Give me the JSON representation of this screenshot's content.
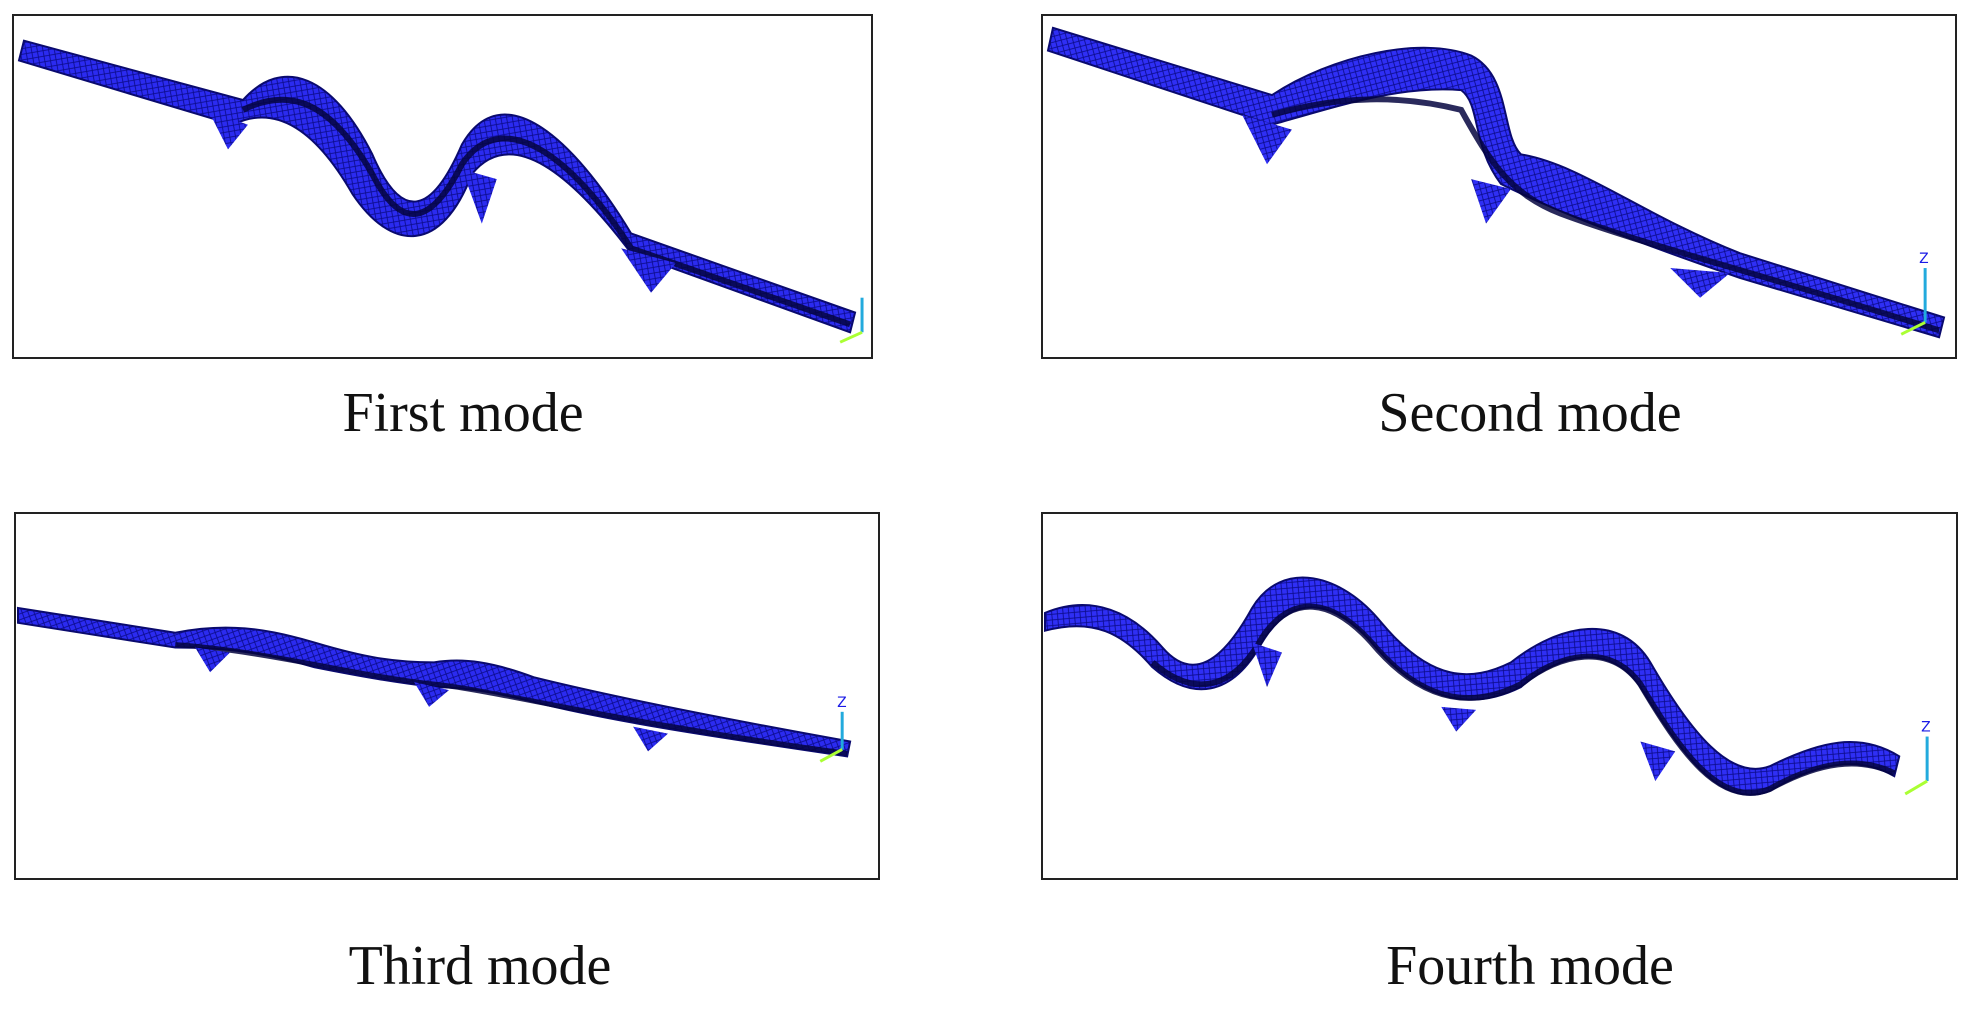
{
  "figure": {
    "panels": [
      {
        "caption": "First mode"
      },
      {
        "caption": "Second mode"
      },
      {
        "caption": "Third mode"
      },
      {
        "caption": "Fourth mode"
      }
    ],
    "axis_triad_label": "Z",
    "colors": {
      "mesh": "#1a1ae6",
      "mesh_dark": "#0a0a6e",
      "frame": "#222222",
      "triad_z": "#22aadd",
      "triad_x": "#aaff33"
    }
  }
}
